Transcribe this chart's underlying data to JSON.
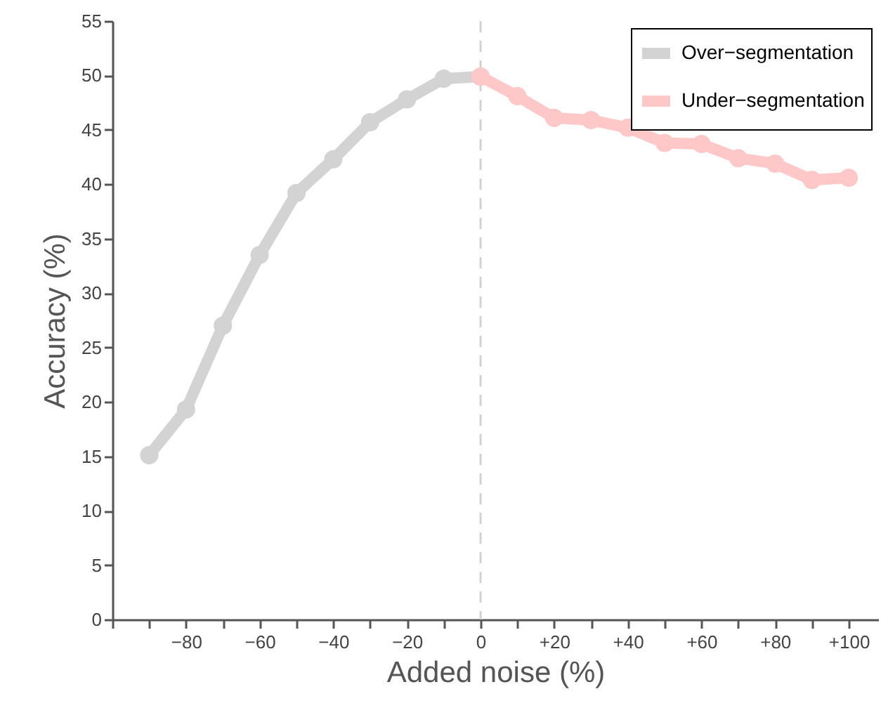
{
  "chart_data": {
    "type": "line",
    "xlabel": "Added noise (%)",
    "ylabel": "Accuracy (%)",
    "xlim": [
      -100,
      108
    ],
    "ylim": [
      0,
      55
    ],
    "xticks": [
      {
        "value": -100,
        "label": null
      },
      {
        "value": -90,
        "label": null
      },
      {
        "value": -80,
        "label": "−80"
      },
      {
        "value": -70,
        "label": null
      },
      {
        "value": -60,
        "label": "−60"
      },
      {
        "value": -50,
        "label": null
      },
      {
        "value": -40,
        "label": "−40"
      },
      {
        "value": -30,
        "label": null
      },
      {
        "value": -20,
        "label": "−20"
      },
      {
        "value": -10,
        "label": null
      },
      {
        "value": 0,
        "label": "0"
      },
      {
        "value": 10,
        "label": null
      },
      {
        "value": 20,
        "label": "+20"
      },
      {
        "value": 30,
        "label": null
      },
      {
        "value": 40,
        "label": "+40"
      },
      {
        "value": 50,
        "label": null
      },
      {
        "value": 60,
        "label": "+60"
      },
      {
        "value": 70,
        "label": null
      },
      {
        "value": 80,
        "label": "+80"
      },
      {
        "value": 90,
        "label": null
      },
      {
        "value": 100,
        "label": "+100"
      }
    ],
    "yticks": [
      0,
      5,
      10,
      15,
      20,
      25,
      30,
      35,
      40,
      45,
      50,
      55
    ],
    "series": [
      {
        "name": "Over−segmentation",
        "color": "#d3d3d3",
        "x": [
          -90,
          -80,
          -70,
          -60,
          -50,
          -40,
          -30,
          -20,
          -10,
          0
        ],
        "values": [
          15.1,
          19.3,
          27,
          33.5,
          39.2,
          42.3,
          45.7,
          47.8,
          49.7,
          49.9
        ]
      },
      {
        "name": "Under−segmentation",
        "color": "#ffc8c8",
        "x": [
          0,
          10,
          20,
          30,
          40,
          50,
          60,
          70,
          80,
          90,
          100
        ],
        "values": [
          49.9,
          48.1,
          46.1,
          45.9,
          45.2,
          43.8,
          43.7,
          42.4,
          41.9,
          40.4,
          40.6
        ]
      }
    ],
    "ref_lines": [
      {
        "axis": "x",
        "value": 0,
        "color": "#d3d3d3",
        "line_style": "dashed"
      }
    ],
    "marker": "circle",
    "line_style": "solid",
    "grid": false,
    "legend": "top right"
  }
}
